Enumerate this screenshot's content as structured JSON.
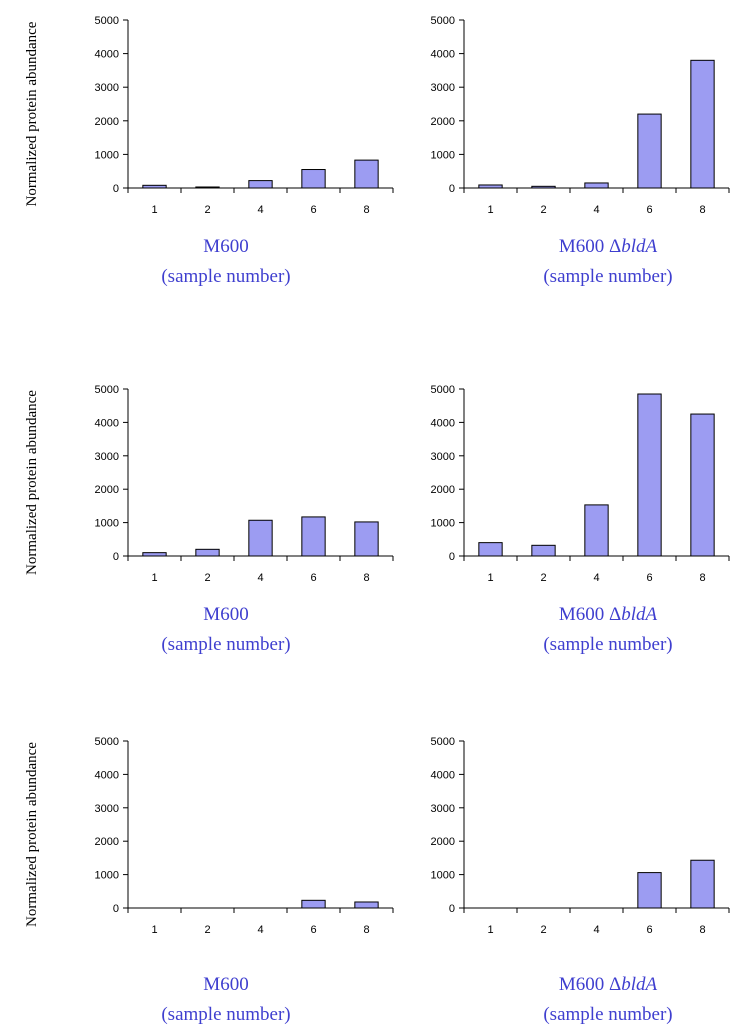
{
  "colors": {
    "bar": "#9c9cf2",
    "caption": "#3f3fcf"
  },
  "ylabel": "Normalized protein abundance",
  "caption_line2": "(sample number)",
  "chart_data": [
    {
      "type": "bar",
      "row": 1,
      "column": 1,
      "categories": [
        "1",
        "2",
        "4",
        "6",
        "8"
      ],
      "values": [
        80,
        30,
        220,
        550,
        830
      ],
      "ylim": [
        0,
        5000
      ],
      "yticks": [
        0,
        1000,
        2000,
        3000,
        4000,
        5000
      ],
      "title": "M600",
      "title_suffix": "",
      "xlabel": "(sample number)",
      "ylabel": "Normalized protein abundance"
    },
    {
      "type": "bar",
      "row": 1,
      "column": 2,
      "categories": [
        "1",
        "2",
        "4",
        "6",
        "8"
      ],
      "values": [
        90,
        50,
        150,
        2200,
        3800
      ],
      "ylim": [
        0,
        5000
      ],
      "yticks": [
        0,
        1000,
        2000,
        3000,
        4000,
        5000
      ],
      "title": "M600 Δ",
      "title_suffix": "bldA",
      "xlabel": "(sample number)",
      "ylabel": ""
    },
    {
      "type": "bar",
      "row": 2,
      "column": 1,
      "categories": [
        "1",
        "2",
        "4",
        "6",
        "8"
      ],
      "values": [
        100,
        200,
        1070,
        1170,
        1020
      ],
      "ylim": [
        0,
        5000
      ],
      "yticks": [
        0,
        1000,
        2000,
        3000,
        4000,
        5000
      ],
      "title": "M600",
      "title_suffix": "",
      "xlabel": "(sample number)",
      "ylabel": "Normalized protein abundance"
    },
    {
      "type": "bar",
      "row": 2,
      "column": 2,
      "categories": [
        "1",
        "2",
        "4",
        "6",
        "8"
      ],
      "values": [
        400,
        320,
        1530,
        4850,
        4250
      ],
      "ylim": [
        0,
        5000
      ],
      "yticks": [
        0,
        1000,
        2000,
        3000,
        4000,
        5000
      ],
      "title": "M600 Δ",
      "title_suffix": "bldA",
      "xlabel": "(sample number)",
      "ylabel": ""
    },
    {
      "type": "bar",
      "row": 3,
      "column": 1,
      "categories": [
        "1",
        "2",
        "4",
        "6",
        "8"
      ],
      "values": [
        0,
        0,
        0,
        230,
        180
      ],
      "ylim": [
        0,
        5000
      ],
      "yticks": [
        0,
        1000,
        2000,
        3000,
        4000,
        5000
      ],
      "title": "M600",
      "title_suffix": "",
      "xlabel": "(sample number)",
      "ylabel": "Normalized protein abundance"
    },
    {
      "type": "bar",
      "row": 3,
      "column": 2,
      "categories": [
        "1",
        "2",
        "4",
        "6",
        "8"
      ],
      "values": [
        0,
        0,
        0,
        1060,
        1430
      ],
      "ylim": [
        0,
        5000
      ],
      "yticks": [
        0,
        1000,
        2000,
        3000,
        4000,
        5000
      ],
      "title": "M600 Δ",
      "title_suffix": "bldA",
      "xlabel": "(sample number)",
      "ylabel": ""
    }
  ]
}
